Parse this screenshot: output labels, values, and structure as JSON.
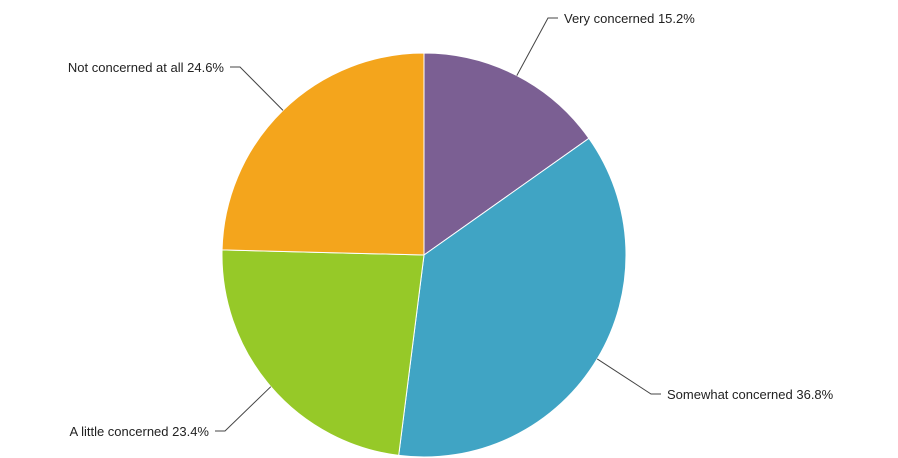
{
  "chart_data": {
    "type": "pie",
    "title": "",
    "unit": "%",
    "slices": [
      {
        "name": "Very concerned",
        "value": 15.2,
        "label": "Very concerned 15.2%",
        "color": "#7b5f93"
      },
      {
        "name": "Somewhat concerned",
        "value": 36.8,
        "label": "Somewhat concerned 36.8%",
        "color": "#40a4c4"
      },
      {
        "name": "A little concerned",
        "value": 23.4,
        "label": "A little concerned 23.4%",
        "color": "#96c928"
      },
      {
        "name": "Not concerned at all",
        "value": 24.6,
        "label": "Not concerned at all 24.6%",
        "color": "#f4a51c"
      }
    ],
    "start_angle": "12 o'clock",
    "direction": "clockwise",
    "legend": "none",
    "data_labels": "outside with leader lines"
  }
}
